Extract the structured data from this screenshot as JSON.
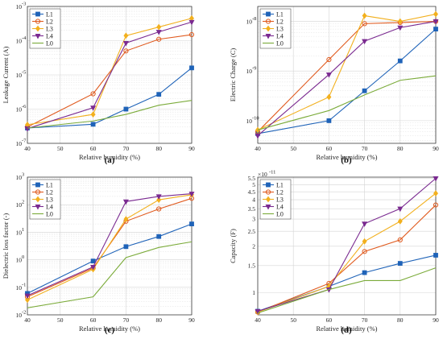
{
  "colors": {
    "L1": "#1f63b8",
    "L2": "#e05a1e",
    "L3": "#f2b01e",
    "L4": "#7a2a90",
    "L0": "#7bab3a"
  },
  "chart_data": [
    {
      "type": "line",
      "panel_label": "(a)",
      "xlabel": "Relative humidity (%)",
      "ylabel": "Leakage Current (A)",
      "x": [
        40,
        60,
        70,
        80,
        90
      ],
      "xlim": [
        40,
        90
      ],
      "xticks": [
        "40",
        "50",
        "60",
        "70",
        "80",
        "90"
      ],
      "yscale": "log",
      "ylim": [
        1e-07,
        0.001
      ],
      "yticks": [
        {
          "base": "10",
          "exp": "-7"
        },
        {
          "base": "10",
          "exp": "-6"
        },
        {
          "base": "10",
          "exp": "-5"
        },
        {
          "base": "10",
          "exp": "-4"
        },
        {
          "base": "10",
          "exp": "-3"
        }
      ],
      "grid": true,
      "legend": "top-left",
      "series": [
        {
          "name": "L1",
          "marker": "square",
          "values": [
            2.8e-07,
            3.6e-07,
            1e-06,
            2.7e-06,
            1.6e-05
          ]
        },
        {
          "name": "L2",
          "marker": "circle",
          "values": [
            3e-07,
            2.8e-06,
            5e-05,
            0.00011,
            0.00015
          ]
        },
        {
          "name": "L3",
          "marker": "diamond",
          "values": [
            3.5e-07,
            7e-07,
            0.00014,
            0.00025,
            0.00045
          ]
        },
        {
          "name": "L4",
          "marker": "triangle-down",
          "values": [
            2.7e-07,
            1.1e-06,
            8.5e-05,
            0.00018,
            0.00035
          ]
        },
        {
          "name": "L0",
          "marker": "none",
          "values": [
            2.8e-07,
            4.5e-07,
            7e-07,
            1.3e-06,
            1.8e-06
          ]
        }
      ]
    },
    {
      "type": "line",
      "panel_label": "(b)",
      "xlabel": "Relative humidity (%)",
      "ylabel": "Electric Charge (C)",
      "x": [
        40,
        60,
        70,
        80,
        90
      ],
      "xlim": [
        40,
        90
      ],
      "xticks": [
        "40",
        "50",
        "60",
        "70",
        "80",
        "90"
      ],
      "yscale": "log",
      "ylim": [
        3.5e-11,
        2e-08
      ],
      "yticks": [
        {
          "base": "10",
          "exp": "-10"
        },
        {
          "base": "10",
          "exp": "-9"
        },
        {
          "base": "10",
          "exp": "-8"
        }
      ],
      "grid": true,
      "legend": "top-left",
      "series": [
        {
          "name": "L1",
          "marker": "square",
          "values": [
            5.5e-11,
            1e-10,
            4e-10,
            1.6e-09,
            7e-09
          ]
        },
        {
          "name": "L2",
          "marker": "circle",
          "values": [
            6e-11,
            1.7e-09,
            9e-09,
            9.5e-09,
            1e-08
          ]
        },
        {
          "name": "L3",
          "marker": "diamond",
          "values": [
            6.5e-11,
            3e-10,
            1.3e-08,
            1e-08,
            1.4e-08
          ]
        },
        {
          "name": "L4",
          "marker": "triangle-down",
          "values": [
            5e-11,
            8.5e-10,
            4e-09,
            7.5e-09,
            1e-08
          ]
        },
        {
          "name": "L0",
          "marker": "none",
          "values": [
            6.5e-11,
            1.6e-10,
            3.3e-10,
            6.5e-10,
            8e-10
          ]
        }
      ]
    },
    {
      "type": "line",
      "panel_label": "(c)",
      "xlabel": "Relative humidity (%)",
      "ylabel": "Dielectric loss factor (-)",
      "x": [
        40,
        60,
        70,
        80,
        90
      ],
      "xlim": [
        40,
        90
      ],
      "xticks": [
        "40",
        "50",
        "60",
        "70",
        "80",
        "90"
      ],
      "yscale": "log",
      "ylim": [
        0.01,
        1000.0
      ],
      "yticks": [
        {
          "base": "10",
          "exp": "-2"
        },
        {
          "base": "10",
          "exp": "-1"
        },
        {
          "base": "10",
          "exp": "0"
        },
        {
          "base": "10",
          "exp": "1"
        },
        {
          "base": "10",
          "exp": "2"
        },
        {
          "base": "10",
          "exp": "3"
        }
      ],
      "grid": true,
      "legend": "top-left",
      "series": [
        {
          "name": "L1",
          "marker": "square",
          "values": [
            0.06,
            0.9,
            3.0,
            7.0,
            20
          ]
        },
        {
          "name": "L2",
          "marker": "circle",
          "values": [
            0.045,
            0.5,
            25,
            70,
            170
          ]
        },
        {
          "name": "L3",
          "marker": "diamond",
          "values": [
            0.035,
            0.45,
            30,
            150,
            230
          ]
        },
        {
          "name": "L4",
          "marker": "triangle-down",
          "values": [
            0.05,
            0.55,
            130,
            200,
            250
          ]
        },
        {
          "name": "L0",
          "marker": "none",
          "values": [
            0.018,
            0.045,
            1.2,
            2.8,
            4.5
          ]
        }
      ]
    },
    {
      "type": "line",
      "panel_label": "(d)",
      "xlabel": "Relative humidity (%)",
      "ylabel": "Capacity (F)",
      "x": [
        40,
        60,
        70,
        80,
        90
      ],
      "xlim": [
        40,
        90
      ],
      "xticks": [
        "40",
        "50",
        "60",
        "70",
        "80",
        "90"
      ],
      "yscale": "log",
      "ylim": [
        0.72,
        5.6
      ],
      "y_multiplier": {
        "base": "×10",
        "exp": "-11"
      },
      "yticks": [
        "1",
        "1.5",
        "2",
        "2.5",
        "3",
        "3.5",
        "4",
        "4.5",
        "5",
        "5.5"
      ],
      "grid": true,
      "legend": "top-left",
      "series": [
        {
          "name": "L1",
          "marker": "square",
          "values": [
            0.76,
            1.1,
            1.35,
            1.55,
            1.75
          ]
        },
        {
          "name": "L2",
          "marker": "circle",
          "values": [
            0.75,
            1.15,
            1.85,
            2.2,
            3.7
          ]
        },
        {
          "name": "L3",
          "marker": "diamond",
          "values": [
            0.75,
            1.1,
            2.15,
            2.9,
            4.4
          ]
        },
        {
          "name": "L4",
          "marker": "triangle-down",
          "values": [
            0.76,
            1.05,
            2.8,
            3.5,
            5.5
          ]
        },
        {
          "name": "L0",
          "marker": "none",
          "values": [
            0.74,
            1.05,
            1.2,
            1.2,
            1.45
          ]
        }
      ]
    }
  ]
}
